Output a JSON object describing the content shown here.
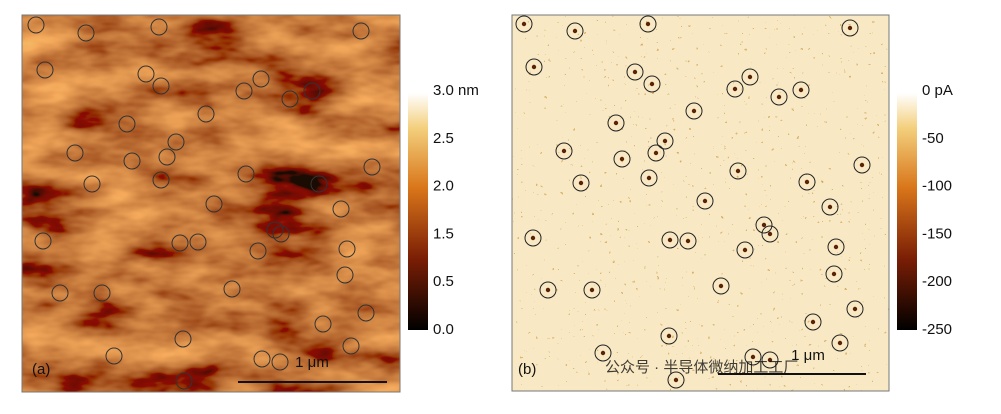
{
  "panels": [
    {
      "label": "(a)",
      "scale_bar": "1 μm",
      "colorbar": {
        "ticks": [
          "3.0 nm",
          "2.5",
          "2.0",
          "1.5",
          "0.5",
          "0.0"
        ]
      }
    },
    {
      "label": "(b)",
      "scale_bar": "1 μm",
      "colorbar": {
        "ticks": [
          "0 pA",
          "-50",
          "-100",
          "-150",
          "-200",
          "-250"
        ]
      }
    }
  ],
  "watermark": "公众号 · 半导体微纳加工工厂"
}
